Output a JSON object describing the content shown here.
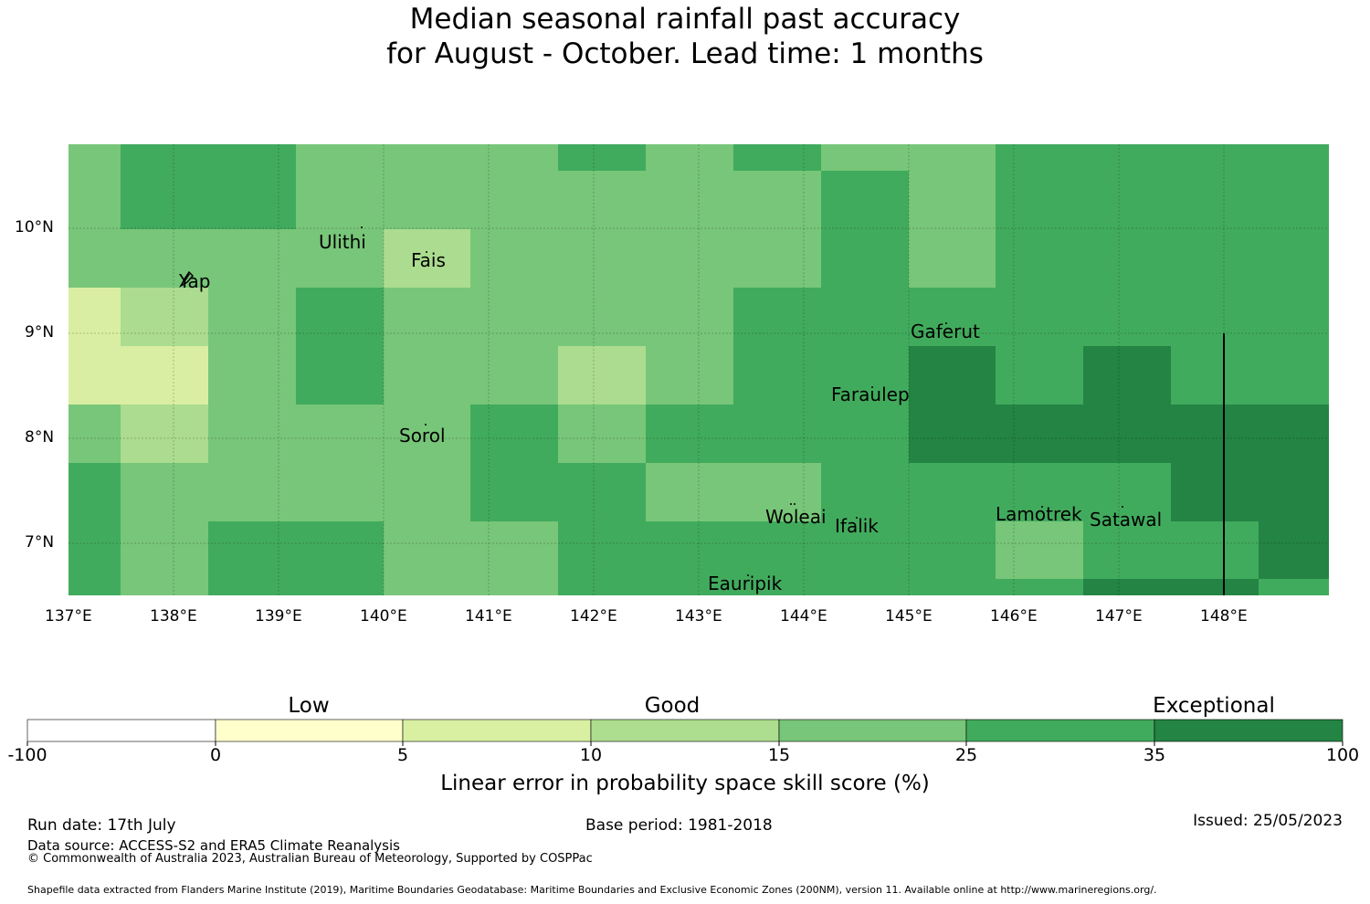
{
  "title_line1": "Median seasonal rainfall past accuracy",
  "title_line2": "for August - October. Lead time: 1 months",
  "map": {
    "lon_labels": [
      "137°E",
      "138°E",
      "139°E",
      "140°E",
      "141°E",
      "142°E",
      "143°E",
      "144°E",
      "145°E",
      "146°E",
      "147°E",
      "148°E"
    ],
    "lat_labels": [
      "10°N",
      "9°N",
      "8°N",
      "7°N"
    ],
    "places": [
      "Ulithi",
      "Yap",
      "Fais",
      "Gaferut",
      "Faraulep",
      "Sorol",
      "Woleai",
      "Ifalik",
      "Lamotrek",
      "Satawal",
      "Eauripik"
    ],
    "category_colors": {
      "c1": "#d9eea2",
      "c2": "#acdc8f",
      "c3": "#78c679",
      "c4": "#41ab5d",
      "c5": "#238443"
    }
  },
  "colorbar": {
    "headings": [
      "Low",
      "Good",
      "Exceptional"
    ],
    "ticks": [
      "-100",
      "0",
      "5",
      "10",
      "15",
      "25",
      "35",
      "100"
    ],
    "colors": [
      "#ffffff",
      "#ffffcc",
      "#d9f0a3",
      "#addd8e",
      "#78c679",
      "#41ab5d",
      "#238443"
    ],
    "xlabel": "Linear error in probability space skill score (%)"
  },
  "footer": {
    "run_date": "Run date: 17th July",
    "data_source": "Data source: ACCESS-S2 and ERA5 Climate Reanalysis",
    "copyright": "© Commonwealth of Australia 2023, Australian Bureau of Meteorology, Supported by COSPPac",
    "base_period": "Base period: 1981-2018",
    "issued": "Issued: 25/05/2023",
    "shapefile": "Shapefile data extracted from Flanders Marine Institute (2019), Maritime Boundaries Geodatabase: Maritime Boundaries and Exclusive Economic Zones (200NM), version 11. Available online at http://www.marineregions.org/."
  }
}
